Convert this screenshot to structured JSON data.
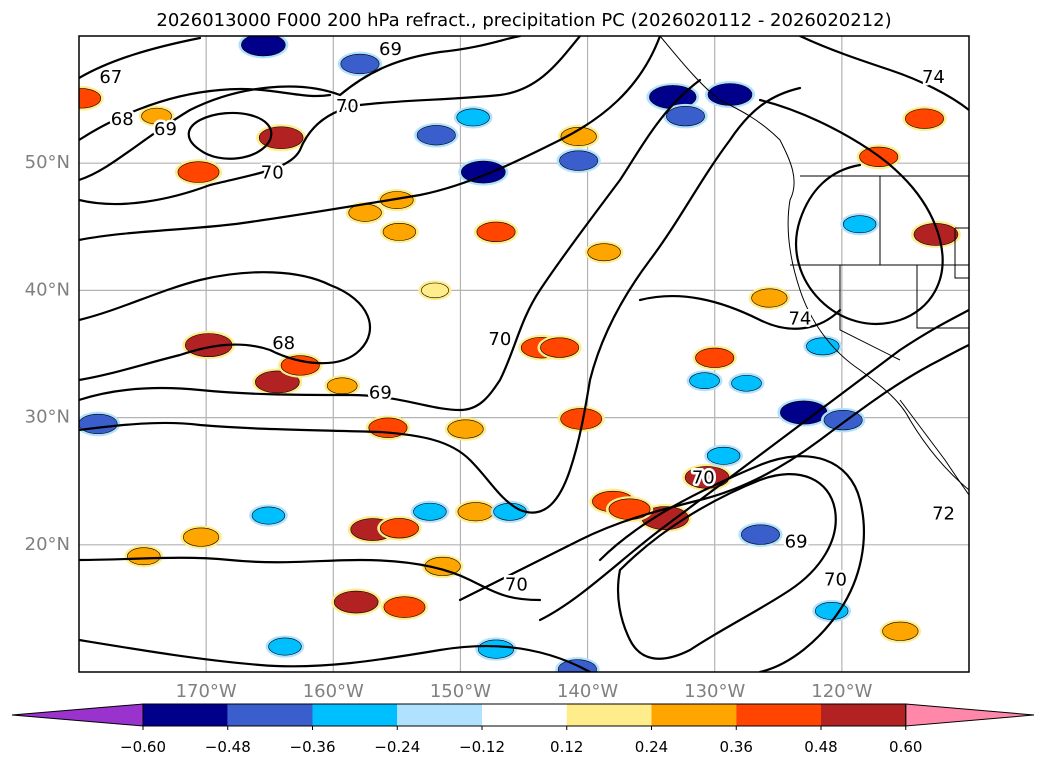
{
  "title": "2026013000 F000 200 hPa refract., precipitation PC (2026020112 - 2026020212)",
  "map": {
    "lon_range": [
      -180,
      -110
    ],
    "lat_range": [
      10,
      60
    ],
    "gridlines": true
  },
  "axes": {
    "x_ticks": [
      {
        "lon": -170,
        "label": "170°W"
      },
      {
        "lon": -160,
        "label": "160°W"
      },
      {
        "lon": -150,
        "label": "150°W"
      },
      {
        "lon": -140,
        "label": "140°W"
      },
      {
        "lon": -130,
        "label": "130°W"
      },
      {
        "lon": -120,
        "label": "120°W"
      }
    ],
    "y_ticks": [
      {
        "lat": 50,
        "label": "50°N"
      },
      {
        "lat": 40,
        "label": "40°N"
      },
      {
        "lat": 30,
        "label": "30°N"
      },
      {
        "lat": 20,
        "label": "20°N"
      }
    ]
  },
  "contour_labels": [
    {
      "text": "67",
      "lon": -177.5,
      "lat": 56.7
    },
    {
      "text": "68",
      "lon": -176.6,
      "lat": 53.4
    },
    {
      "text": "69",
      "lon": -173.2,
      "lat": 52.6
    },
    {
      "text": "69",
      "lon": -155.5,
      "lat": 58.9
    },
    {
      "text": "70",
      "lon": -158.9,
      "lat": 54.4
    },
    {
      "text": "70",
      "lon": -164.8,
      "lat": 49.2
    },
    {
      "text": "74",
      "lon": -112.8,
      "lat": 56.7
    },
    {
      "text": "68",
      "lon": -163.9,
      "lat": 35.8
    },
    {
      "text": "69",
      "lon": -156.3,
      "lat": 31.9
    },
    {
      "text": "70",
      "lon": -146.9,
      "lat": 36.1
    },
    {
      "text": "74",
      "lon": -123.3,
      "lat": 37.7
    },
    {
      "text": "70",
      "lon": -130.9,
      "lat": 25.2
    },
    {
      "text": "69",
      "lon": -123.6,
      "lat": 20.2
    },
    {
      "text": "70",
      "lon": -120.5,
      "lat": 17.2
    },
    {
      "text": "72",
      "lon": -112.0,
      "lat": 22.4
    },
    {
      "text": "70",
      "lon": -145.6,
      "lat": 16.8
    }
  ],
  "precip_patches": [
    {
      "lon": -179.8,
      "lat": 55.1,
      "value": 0.4
    },
    {
      "lon": -173.9,
      "lat": 53.7,
      "value": 0.25
    },
    {
      "lon": -170.6,
      "lat": 49.3,
      "value": 0.45
    },
    {
      "lon": -164.1,
      "lat": 52.0,
      "value": 0.5
    },
    {
      "lon": -165.5,
      "lat": 59.3,
      "value": -0.5
    },
    {
      "lon": -157.9,
      "lat": 57.8,
      "value": -0.4
    },
    {
      "lon": -151.9,
      "lat": 52.2,
      "value": -0.4
    },
    {
      "lon": -149.0,
      "lat": 53.6,
      "value": -0.3
    },
    {
      "lon": -148.2,
      "lat": 49.3,
      "value": -0.5
    },
    {
      "lon": -140.7,
      "lat": 50.2,
      "value": -0.4
    },
    {
      "lon": -140.7,
      "lat": 52.1,
      "value": 0.35
    },
    {
      "lon": -133.3,
      "lat": 55.2,
      "value": -0.55
    },
    {
      "lon": -128.8,
      "lat": 55.4,
      "value": -0.5
    },
    {
      "lon": -132.3,
      "lat": 53.7,
      "value": -0.4
    },
    {
      "lon": -117.1,
      "lat": 50.5,
      "value": 0.4
    },
    {
      "lon": -113.5,
      "lat": 53.5,
      "value": 0.4
    },
    {
      "lon": -112.6,
      "lat": 44.4,
      "value": 0.5
    },
    {
      "lon": -118.6,
      "lat": 45.2,
      "value": -0.3
    },
    {
      "lon": -155.0,
      "lat": 47.1,
      "value": 0.3
    },
    {
      "lon": -157.5,
      "lat": 46.1,
      "value": 0.3
    },
    {
      "lon": -147.2,
      "lat": 44.6,
      "value": 0.4
    },
    {
      "lon": -154.8,
      "lat": 44.6,
      "value": 0.3
    },
    {
      "lon": -152.0,
      "lat": 40.0,
      "value": 0.2
    },
    {
      "lon": -169.8,
      "lat": 35.7,
      "value": 0.55
    },
    {
      "lon": -164.4,
      "lat": 32.8,
      "value": 0.5
    },
    {
      "lon": -162.6,
      "lat": 34.1,
      "value": 0.4
    },
    {
      "lon": -178.5,
      "lat": 29.5,
      "value": -0.4
    },
    {
      "lon": -159.3,
      "lat": 32.5,
      "value": 0.25
    },
    {
      "lon": -155.7,
      "lat": 29.2,
      "value": 0.4
    },
    {
      "lon": -149.6,
      "lat": 29.1,
      "value": 0.35
    },
    {
      "lon": -148.8,
      "lat": 22.6,
      "value": 0.35
    },
    {
      "lon": -143.6,
      "lat": 35.5,
      "value": 0.45
    },
    {
      "lon": -142.2,
      "lat": 35.5,
      "value": 0.4
    },
    {
      "lon": -140.5,
      "lat": 29.9,
      "value": 0.45
    },
    {
      "lon": -138.0,
      "lat": 23.4,
      "value": 0.45
    },
    {
      "lon": -130.6,
      "lat": 25.3,
      "value": 0.5
    },
    {
      "lon": -133.9,
      "lat": 22.1,
      "value": 0.55
    },
    {
      "lon": -123.0,
      "lat": 30.4,
      "value": -0.55
    },
    {
      "lon": -119.9,
      "lat": 29.8,
      "value": -0.4
    },
    {
      "lon": -121.5,
      "lat": 35.6,
      "value": -0.3
    },
    {
      "lon": -156.9,
      "lat": 21.2,
      "value": 0.5
    },
    {
      "lon": -154.8,
      "lat": 21.3,
      "value": 0.4
    },
    {
      "lon": -158.2,
      "lat": 15.5,
      "value": 0.5
    },
    {
      "lon": -154.4,
      "lat": 15.1,
      "value": 0.45
    },
    {
      "lon": -151.4,
      "lat": 18.3,
      "value": 0.35
    },
    {
      "lon": -170.4,
      "lat": 20.6,
      "value": 0.35
    },
    {
      "lon": -174.9,
      "lat": 19.1,
      "value": 0.3
    },
    {
      "lon": -146.1,
      "lat": 22.6,
      "value": -0.3
    },
    {
      "lon": -152.4,
      "lat": 22.6,
      "value": -0.3
    },
    {
      "lon": -165.1,
      "lat": 22.3,
      "value": -0.3
    },
    {
      "lon": -147.2,
      "lat": 11.8,
      "value": -0.35
    },
    {
      "lon": -136.7,
      "lat": 22.8,
      "value": 0.45
    },
    {
      "lon": -130.8,
      "lat": 32.9,
      "value": -0.25
    },
    {
      "lon": -127.5,
      "lat": 32.7,
      "value": -0.25
    },
    {
      "lon": -130.0,
      "lat": 34.7,
      "value": 0.4
    },
    {
      "lon": -138.7,
      "lat": 43.0,
      "value": 0.3
    },
    {
      "lon": -125.7,
      "lat": 39.4,
      "value": 0.35
    },
    {
      "lon": -129.3,
      "lat": 27.0,
      "value": -0.3
    },
    {
      "lon": -126.4,
      "lat": 20.8,
      "value": -0.4
    },
    {
      "lon": -120.8,
      "lat": 14.8,
      "value": -0.3
    },
    {
      "lon": -115.4,
      "lat": 13.2,
      "value": 0.35
    },
    {
      "lon": -163.8,
      "lat": 12.0,
      "value": -0.3
    },
    {
      "lon": -140.8,
      "lat": 10.2,
      "value": -0.4
    }
  ],
  "colorbar": {
    "tick_labels": [
      "−0.60",
      "−0.48",
      "−0.36",
      "−0.24",
      "−0.12",
      "0.12",
      "0.24",
      "0.36",
      "0.48",
      "0.60"
    ],
    "bounds": [
      -0.6,
      -0.48,
      -0.36,
      -0.24,
      -0.12,
      0.12,
      0.24,
      0.36,
      0.48,
      0.6
    ],
    "colors": [
      "#9a32cd",
      "#00008b",
      "#3a5fcd",
      "#00bfff",
      "#b0e2ff",
      "#ffffff",
      "#ffec8b",
      "#ffa500",
      "#ff4500",
      "#b22222",
      "#ff88aa"
    ]
  }
}
